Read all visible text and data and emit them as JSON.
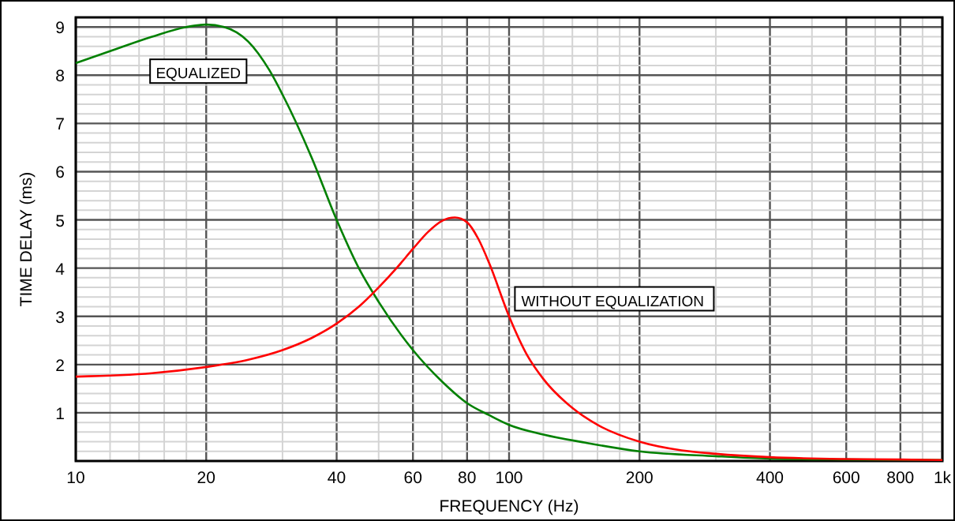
{
  "chart_data": {
    "type": "line",
    "xlabel": "FREQUENCY (Hz)",
    "ylabel": "TIME DELAY (ms)",
    "log": "x",
    "grid": true,
    "legend": false,
    "line_style": "solid",
    "marker": "none",
    "xlim": [
      10,
      1000
    ],
    "ylim": [
      0,
      9.2
    ],
    "xticks": [
      10,
      {
        "value": 12,
        "label": null
      },
      {
        "value": 14,
        "label": null
      },
      {
        "value": 16,
        "label": null
      },
      {
        "value": 18,
        "label": null
      },
      20,
      {
        "value": 30,
        "label": null
      },
      40,
      {
        "value": 50,
        "label": null
      },
      60,
      {
        "value": 70,
        "label": null
      },
      80,
      {
        "value": 90,
        "label": null
      },
      100,
      {
        "value": 120,
        "label": null
      },
      {
        "value": 140,
        "label": null
      },
      {
        "value": 160,
        "label": null
      },
      {
        "value": 180,
        "label": null
      },
      200,
      {
        "value": 300,
        "label": null
      },
      400,
      {
        "value": 500,
        "label": null
      },
      600,
      {
        "value": 700,
        "label": null
      },
      800,
      {
        "value": 900,
        "label": null
      },
      {
        "value": 1000,
        "label": "1k"
      }
    ],
    "yticks": [
      {
        "value": 0.2,
        "label": null
      },
      {
        "value": 0.4,
        "label": null
      },
      {
        "value": 0.6,
        "label": null
      },
      {
        "value": 0.8,
        "label": null
      },
      1,
      {
        "value": 1.2,
        "label": null
      },
      {
        "value": 1.4,
        "label": null
      },
      {
        "value": 1.6,
        "label": null
      },
      {
        "value": 1.8,
        "label": null
      },
      2,
      {
        "value": 2.2,
        "label": null
      },
      {
        "value": 2.4,
        "label": null
      },
      {
        "value": 2.6,
        "label": null
      },
      {
        "value": 2.8,
        "label": null
      },
      3,
      {
        "value": 3.2,
        "label": null
      },
      {
        "value": 3.4,
        "label": null
      },
      {
        "value": 3.6,
        "label": null
      },
      {
        "value": 3.8,
        "label": null
      },
      4,
      {
        "value": 4.2,
        "label": null
      },
      {
        "value": 4.4,
        "label": null
      },
      {
        "value": 4.6,
        "label": null
      },
      {
        "value": 4.8,
        "label": null
      },
      5,
      {
        "value": 5.2,
        "label": null
      },
      {
        "value": 5.4,
        "label": null
      },
      {
        "value": 5.6,
        "label": null
      },
      {
        "value": 5.8,
        "label": null
      },
      6,
      {
        "value": 6.2,
        "label": null
      },
      {
        "value": 6.4,
        "label": null
      },
      {
        "value": 6.6,
        "label": null
      },
      {
        "value": 6.8,
        "label": null
      },
      7,
      {
        "value": 7.2,
        "label": null
      },
      {
        "value": 7.4,
        "label": null
      },
      {
        "value": 7.6,
        "label": null
      },
      {
        "value": 7.8,
        "label": null
      },
      8,
      {
        "value": 8.2,
        "label": null
      },
      {
        "value": 8.4,
        "label": null
      },
      {
        "value": 8.6,
        "label": null
      },
      {
        "value": 8.8,
        "label": null
      },
      9
    ],
    "series": [
      {
        "name": "EQUALIZED",
        "color": "#008000",
        "x": [
          10,
          12,
          15,
          18,
          20,
          22,
          25,
          28,
          30,
          35,
          40,
          45,
          50,
          60,
          70,
          80,
          90,
          100,
          120,
          150,
          200,
          300,
          400,
          600,
          1000
        ],
        "values": [
          8.25,
          8.5,
          8.8,
          9.0,
          9.05,
          9.0,
          8.7,
          8.1,
          7.6,
          6.3,
          5.0,
          4.0,
          3.3,
          2.3,
          1.65,
          1.2,
          0.95,
          0.75,
          0.55,
          0.38,
          0.2,
          0.1,
          0.05,
          0.03,
          0.02
        ]
      },
      {
        "name": "WITHOUT EQUALIZATION",
        "color": "#ff0000",
        "x": [
          10,
          15,
          20,
          25,
          30,
          35,
          40,
          45,
          50,
          55,
          60,
          65,
          70,
          75,
          80,
          85,
          90,
          100,
          110,
          120,
          140,
          160,
          200,
          250,
          300,
          400,
          600,
          800,
          1000
        ],
        "values": [
          1.75,
          1.82,
          1.95,
          2.1,
          2.3,
          2.55,
          2.85,
          3.2,
          3.6,
          4.0,
          4.4,
          4.75,
          4.98,
          5.05,
          4.95,
          4.6,
          4.1,
          3.0,
          2.2,
          1.7,
          1.1,
          0.75,
          0.4,
          0.22,
          0.15,
          0.08,
          0.04,
          0.03,
          0.02
        ]
      }
    ]
  }
}
